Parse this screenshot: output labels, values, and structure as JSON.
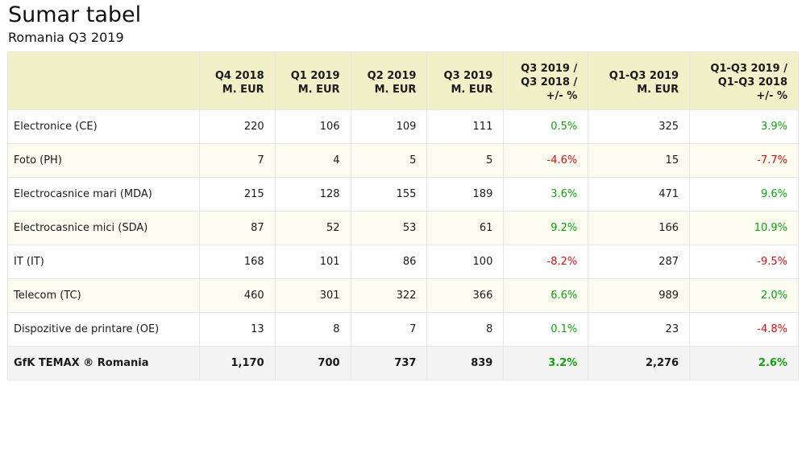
{
  "title": "Sumar tabel",
  "subtitle": "Romania Q3 2019",
  "colors": {
    "positive": "#12a112",
    "negative": "#cc1111",
    "header_bg": "#f2f0c9"
  },
  "columns": [
    {
      "lines": [
        ""
      ]
    },
    {
      "lines": [
        "Q4 2018",
        "M. EUR"
      ]
    },
    {
      "lines": [
        "Q1 2019",
        "M. EUR"
      ]
    },
    {
      "lines": [
        "Q2 2019",
        "M. EUR"
      ]
    },
    {
      "lines": [
        "Q3 2019",
        "M. EUR"
      ]
    },
    {
      "lines": [
        "Q3 2019 /",
        "Q3 2018 /",
        "+/- %"
      ]
    },
    {
      "lines": [
        "Q1-Q3 2019",
        "M. EUR"
      ]
    },
    {
      "lines": [
        "Q1-Q3 2019 /",
        "Q1-Q3 2018",
        "+/- %"
      ]
    }
  ],
  "rows": [
    {
      "cells": [
        "Electronice (CE)",
        "220",
        "106",
        "109",
        "111",
        "0.5%",
        "325",
        "3.9%"
      ]
    },
    {
      "cells": [
        "Foto (PH)",
        "7",
        "4",
        "5",
        "5",
        "-4.6%",
        "15",
        "-7.7%"
      ]
    },
    {
      "cells": [
        "Electrocasnice mari (MDA)",
        "215",
        "128",
        "155",
        "189",
        "3.6%",
        "471",
        "9.6%"
      ]
    },
    {
      "cells": [
        "Electrocasnice mici (SDA)",
        "87",
        "52",
        "53",
        "61",
        "9.2%",
        "166",
        "10.9%"
      ]
    },
    {
      "cells": [
        "IT (IT)",
        "168",
        "101",
        "86",
        "100",
        "-8.2%",
        "287",
        "-9.5%"
      ]
    },
    {
      "cells": [
        "Telecom (TC)",
        "460",
        "301",
        "322",
        "366",
        "6.6%",
        "989",
        "2.0%"
      ]
    },
    {
      "cells": [
        "Dispozitive de printare (OE)",
        "13",
        "8",
        "7",
        "8",
        "0.1%",
        "23",
        "-4.8%"
      ]
    }
  ],
  "total": {
    "cells": [
      "GfK TEMAX ® Romania",
      "1,170",
      "700",
      "737",
      "839",
      "3.2%",
      "2,276",
      "2.6%"
    ]
  }
}
